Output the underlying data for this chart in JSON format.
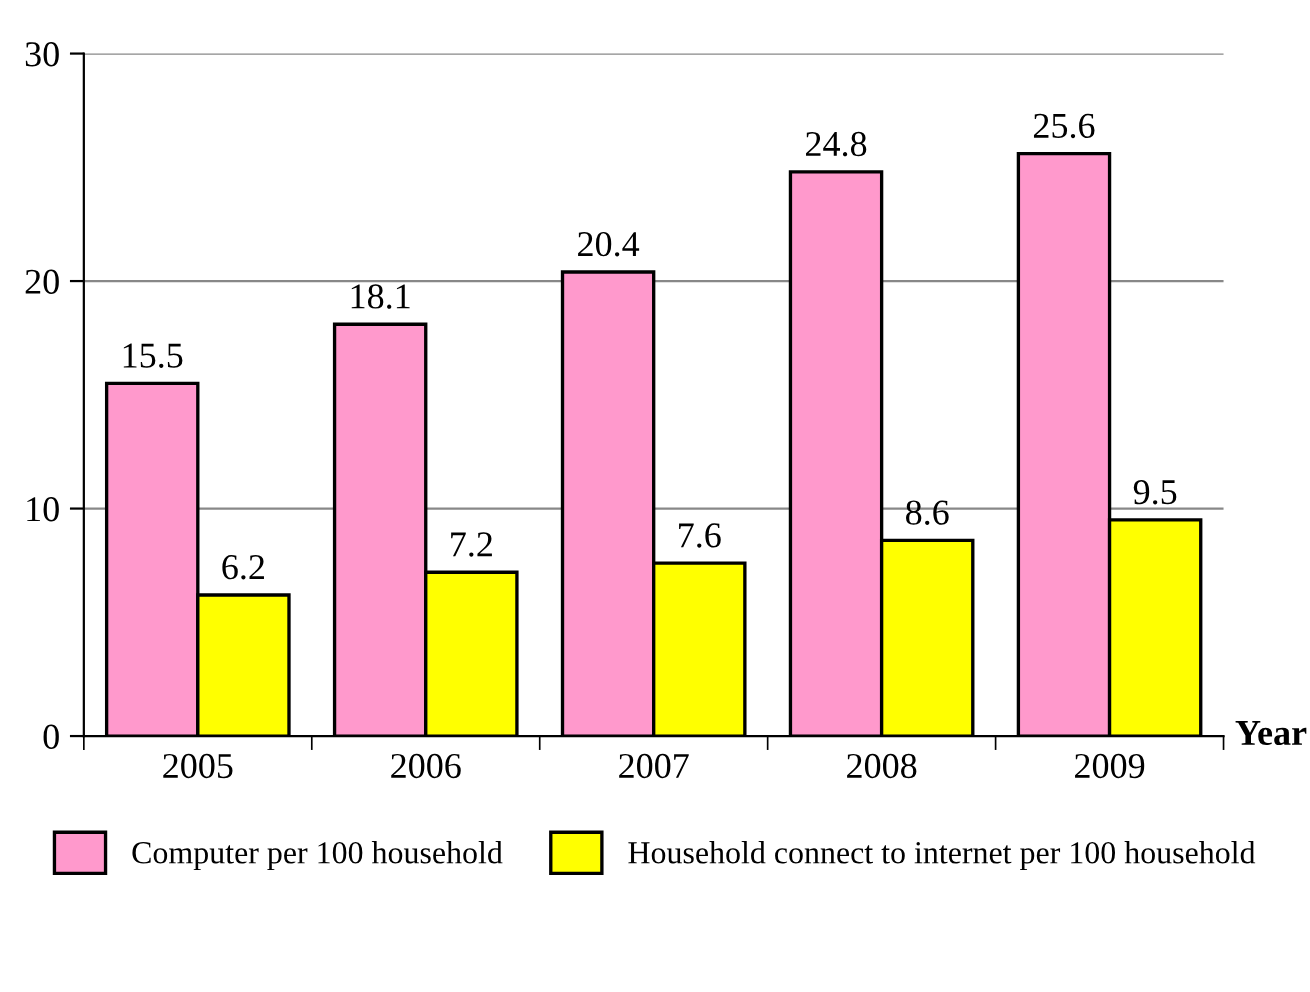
{
  "chart_data": {
    "type": "bar",
    "xlabel": "Year",
    "categories": [
      "2005",
      "2006",
      "2007",
      "2008",
      "2009"
    ],
    "series": [
      {
        "name": "Computer per 100 household",
        "color": "#ff99cc",
        "values": [
          15.5,
          18.1,
          20.4,
          24.8,
          25.6
        ]
      },
      {
        "name": "Household connect to internet per 100 household",
        "color": "#ffff00",
        "values": [
          6.2,
          7.2,
          7.6,
          8.6,
          9.5
        ]
      }
    ],
    "ylim": [
      0,
      30
    ],
    "yticks": [
      0,
      10,
      20,
      30
    ],
    "grid": "y",
    "legend": "bottom",
    "data_labels": true
  }
}
